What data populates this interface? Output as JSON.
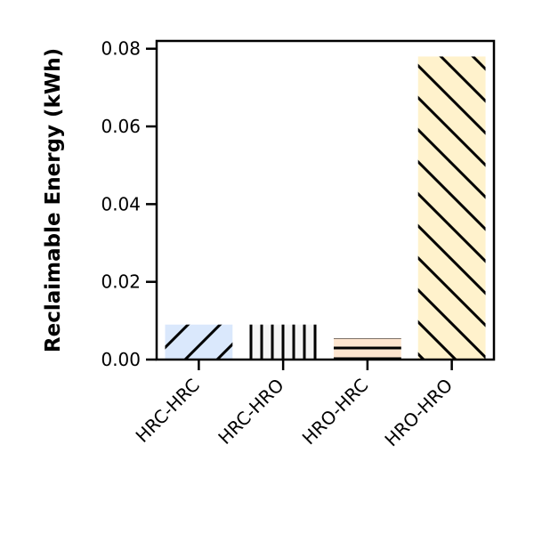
{
  "chart_data": {
    "type": "bar",
    "title": "",
    "xlabel": "",
    "ylabel": "Reclaimable Energy (kWh)",
    "categories": [
      "HRC-HRC",
      "HRC-HRO",
      "HRO-HRC",
      "HRO-HRO"
    ],
    "values": [
      0.009,
      0.009,
      0.0055,
      0.078
    ],
    "ylim": [
      0,
      0.082
    ],
    "yticks": [
      0.0,
      0.02,
      0.04,
      0.06,
      0.08
    ],
    "ytick_labels": [
      "0.00",
      "0.02",
      "0.04",
      "0.06",
      "0.08"
    ],
    "grid": false,
    "bar_colors": [
      "#dae8fc",
      "#f5f5f5",
      "#fde5cf",
      "#fff2cc"
    ],
    "bar_hatches": [
      "forward-diagonal",
      "vertical",
      "horizontal",
      "back-diagonal"
    ]
  }
}
